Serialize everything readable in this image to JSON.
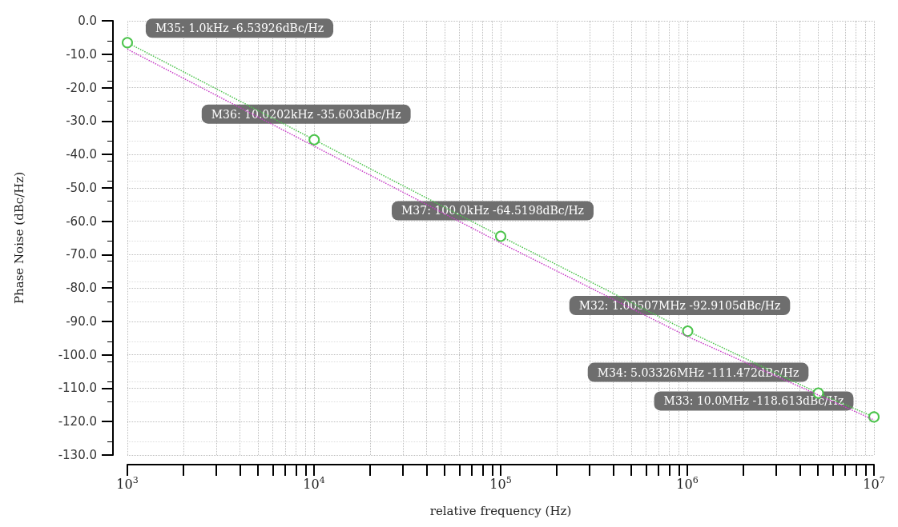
{
  "chart_data": {
    "type": "line",
    "xlabel": "relative frequency (Hz)",
    "ylabel": "Phase Noise (dBc/Hz)",
    "log": "x",
    "grid": true,
    "line_style": "dotted",
    "xlim": [
      1000,
      10000000
    ],
    "ylim": [
      -130,
      0
    ],
    "xticks": [
      {
        "value": 1000,
        "label": "10$^{3}$"
      },
      {
        "value": 2000,
        "label": null
      },
      {
        "value": 3000,
        "label": null
      },
      {
        "value": 4000,
        "label": null
      },
      {
        "value": 5000,
        "label": null
      },
      {
        "value": 6000,
        "label": null
      },
      {
        "value": 7000,
        "label": null
      },
      {
        "value": 8000,
        "label": null
      },
      {
        "value": 9000,
        "label": null
      },
      {
        "value": 10000,
        "label": "10$^{4}$"
      },
      {
        "value": 20000,
        "label": null
      },
      {
        "value": 30000,
        "label": null
      },
      {
        "value": 40000,
        "label": null
      },
      {
        "value": 50000,
        "label": null
      },
      {
        "value": 60000,
        "label": null
      },
      {
        "value": 70000,
        "label": null
      },
      {
        "value": 80000,
        "label": null
      },
      {
        "value": 90000,
        "label": null
      },
      {
        "value": 100000,
        "label": "10$^{5}$"
      },
      {
        "value": 200000,
        "label": null
      },
      {
        "value": 300000,
        "label": null
      },
      {
        "value": 400000,
        "label": null
      },
      {
        "value": 500000,
        "label": null
      },
      {
        "value": 600000,
        "label": null
      },
      {
        "value": 700000,
        "label": null
      },
      {
        "value": 800000,
        "label": null
      },
      {
        "value": 900000,
        "label": null
      },
      {
        "value": 1000000,
        "label": "10$^{6}$"
      },
      {
        "value": 2000000,
        "label": null
      },
      {
        "value": 3000000,
        "label": null
      },
      {
        "value": 4000000,
        "label": null
      },
      {
        "value": 5000000,
        "label": null
      },
      {
        "value": 6000000,
        "label": null
      },
      {
        "value": 7000000,
        "label": null
      },
      {
        "value": 8000000,
        "label": null
      },
      {
        "value": 9000000,
        "label": null
      },
      {
        "value": 10000000,
        "label": "10$^{7}$"
      }
    ],
    "yticks": [
      {
        "value": 0,
        "label": "0.0"
      },
      {
        "value": -10,
        "label": "-10.0"
      },
      {
        "value": -20,
        "label": "-20.0"
      },
      {
        "value": -30,
        "label": "-30.0"
      },
      {
        "value": -40,
        "label": "-40.0"
      },
      {
        "value": -50,
        "label": "-50.0"
      },
      {
        "value": -60,
        "label": "-60.0"
      },
      {
        "value": -70,
        "label": "-70.0"
      },
      {
        "value": -80,
        "label": "-80.0"
      },
      {
        "value": -90,
        "label": "-90.0"
      },
      {
        "value": -100,
        "label": "-100.0"
      },
      {
        "value": -110,
        "label": "-110.0"
      },
      {
        "value": -120,
        "label": "-120.0"
      },
      {
        "value": -130,
        "label": "-130.0"
      }
    ],
    "series": [
      {
        "color": "#4cc44c",
        "marker": "circle",
        "x": [
          1000,
          10020.2,
          100000,
          1005070,
          5033260,
          10000000
        ],
        "values": [
          -6.53926,
          -35.603,
          -64.5198,
          -92.9105,
          -111.472,
          -118.613
        ]
      },
      {
        "color": "#c83cc8",
        "marker": "none",
        "x": [
          1000,
          10000,
          100000,
          1000000,
          10000000
        ],
        "values": [
          -8.5,
          -37.5,
          -66.5,
          -94.5,
          -119.5
        ]
      }
    ],
    "annotations": [
      {
        "text": "M35: 1.0kHz -6.53926dBc/Hz",
        "x": 1000,
        "y": -6.53926
      },
      {
        "text": "M36: 10.0202kHz -35.603dBc/Hz",
        "x": 10020.2,
        "y": -35.603
      },
      {
        "text": "M37: 100.0kHz -64.5198dBc/Hz",
        "x": 100000,
        "y": -64.5198
      },
      {
        "text": "M32: 1.00507MHz -92.9105dBc/Hz",
        "x": 1005070,
        "y": -92.9105
      },
      {
        "text": "M34: 5.03326MHz -111.472dBc/Hz",
        "x": 5033260,
        "y": -111.472
      },
      {
        "text": "M33: 10.0MHz -118.613dBc/Hz",
        "x": 10000000,
        "y": -118.613
      }
    ]
  }
}
